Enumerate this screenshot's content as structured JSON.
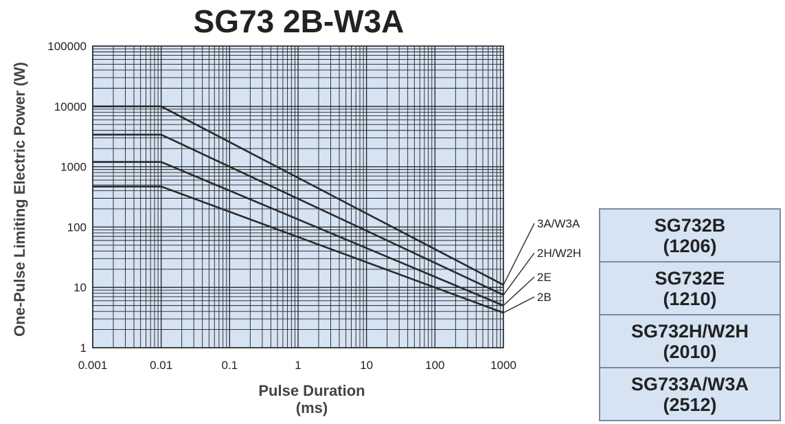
{
  "chart_data": {
    "type": "line",
    "title": "SG73 2B-W3A",
    "xlabel_line1": "Pulse Duration",
    "xlabel_line2": "(ms)",
    "ylabel": "One-Pulse Limiting Electric Power (W)",
    "x_scale": "log",
    "y_scale": "log",
    "xlim": [
      0.001,
      1000
    ],
    "ylim": [
      1,
      100000
    ],
    "x_ticks": [
      "0.001",
      "0.01",
      "0.1",
      "1",
      "10",
      "100",
      "1000"
    ],
    "y_ticks": [
      "100000",
      "10000",
      "1000",
      "100",
      "10",
      "1"
    ],
    "grid": true,
    "series": [
      {
        "name": "3A/W3A",
        "x": [
          0.001,
          0.01,
          1000
        ],
        "y": [
          10000,
          10000,
          11
        ]
      },
      {
        "name": "2H/W2H",
        "x": [
          0.001,
          0.01,
          1000
        ],
        "y": [
          3400,
          3400,
          7.5
        ]
      },
      {
        "name": "2E",
        "x": [
          0.001,
          0.01,
          1000
        ],
        "y": [
          1200,
          1200,
          5
        ]
      },
      {
        "name": "2B",
        "x": [
          0.001,
          0.01,
          1000
        ],
        "y": [
          470,
          470,
          3.8
        ]
      }
    ]
  },
  "legend_table": [
    {
      "line1": "SG732B",
      "line2": "(1206)"
    },
    {
      "line1": "SG732E",
      "line2": "(1210)"
    },
    {
      "line1": "SG732H/W2H",
      "line2": "(2010)"
    },
    {
      "line1": "SG733A/W3A",
      "line2": "(2512)"
    }
  ],
  "colors": {
    "plot_background": "#d5e3f3",
    "grid": "#222222",
    "series_line": "#2a2a2a"
  }
}
